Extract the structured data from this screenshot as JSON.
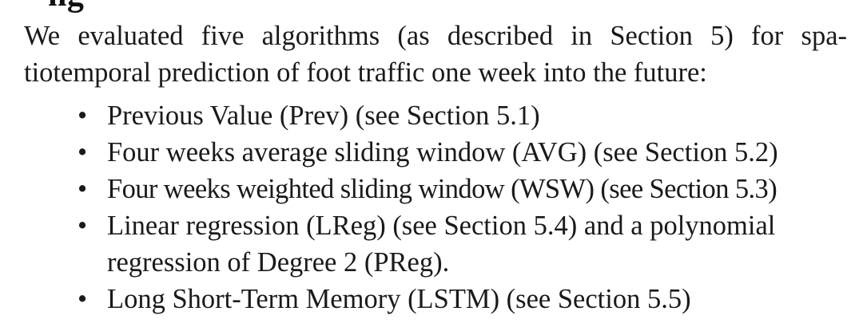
{
  "heading_fragment": "ng",
  "paragraph": {
    "line1": "We evaluated five algorithms (as described in Section 5) for spa-",
    "line2": "tiotemporal prediction of foot traffic one week into the future:"
  },
  "bullet_glyph": "•",
  "items": [
    {
      "lines": [
        "Previous Value (Prev) (see Section 5.1)"
      ]
    },
    {
      "lines": [
        "Four weeks average sliding window (AVG) (see Section 5.2)"
      ]
    },
    {
      "lines": [
        "Four weeks weighted sliding window (WSW) (see Section 5.3)"
      ]
    },
    {
      "lines": [
        "Linear regression (LReg) (see Section 5.4) and a polynomial",
        "regression of Degree 2 (PReg)."
      ]
    },
    {
      "lines": [
        "Long Short-Term Memory (LSTM) (see Section 5.5)"
      ]
    }
  ]
}
